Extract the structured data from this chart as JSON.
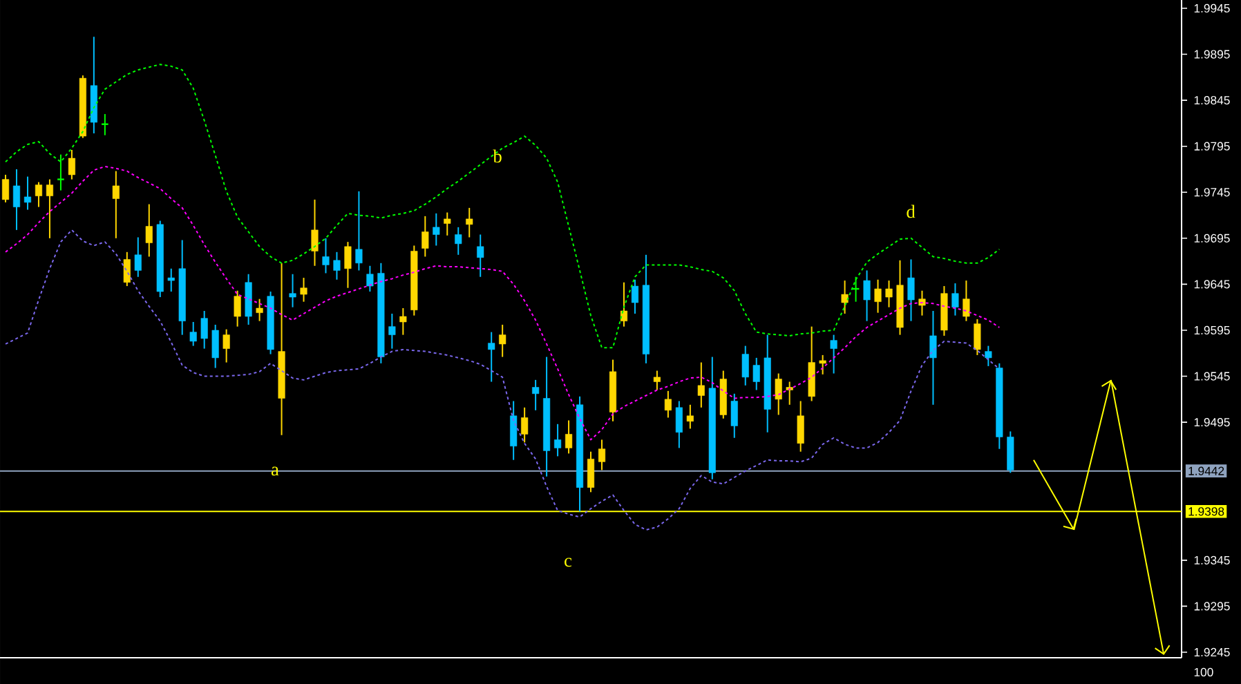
{
  "chart_data": {
    "type": "candlestick",
    "categories": [
      null,
      null,
      null,
      null,
      null,
      null,
      null,
      null,
      null,
      null,
      null,
      null,
      null,
      null,
      null,
      null,
      null,
      null,
      null,
      null,
      null,
      null,
      null,
      null,
      null,
      null,
      null,
      null,
      null,
      null,
      null,
      null,
      null,
      null,
      null,
      null,
      null,
      null,
      null,
      null,
      null,
      null,
      null,
      null,
      null,
      null,
      null,
      null,
      null,
      null,
      null,
      null,
      null,
      null,
      null,
      null,
      null,
      null,
      null,
      null,
      null,
      null,
      null,
      null,
      null,
      null,
      null,
      null,
      null,
      null,
      null,
      null,
      null,
      null,
      null,
      null,
      null,
      null,
      null,
      null,
      null,
      null,
      null,
      null,
      null,
      null,
      null,
      null,
      null,
      null,
      null,
      null,
      null,
      null,
      null,
      null,
      null,
      null,
      null,
      null,
      null,
      null,
      null,
      null,
      null,
      null,
      null
    ],
    "ohlc": [
      [
        1.9737,
        1.9764,
        1.9734,
        1.9759
      ],
      [
        1.9752,
        1.977,
        1.9704,
        1.9729
      ],
      [
        1.974,
        1.9762,
        1.9726,
        1.9734
      ],
      [
        1.9741,
        1.9756,
        1.9729,
        1.9753
      ],
      [
        1.9741,
        1.9759,
        1.9695,
        1.9753
      ],
      [
        1.9759,
        1.9786,
        1.9747,
        1.9759
      ],
      [
        1.9764,
        1.9791,
        1.9759,
        1.9782
      ],
      [
        1.9806,
        1.9872,
        1.9804,
        1.9869
      ],
      [
        1.9861,
        1.9914,
        1.9809,
        1.9821
      ],
      [
        1.9819,
        1.983,
        1.9807,
        1.9819
      ],
      [
        1.9738,
        1.9768,
        1.9695,
        1.9752
      ],
      [
        1.9647,
        1.968,
        1.9643,
        1.9672
      ],
      [
        1.9677,
        1.9696,
        1.9653,
        1.966
      ],
      [
        1.969,
        1.9732,
        1.9675,
        1.9708
      ],
      [
        1.971,
        1.9714,
        1.9631,
        1.9637
      ],
      [
        1.9652,
        1.9662,
        1.9637,
        1.9649
      ],
      [
        1.9662,
        1.9693,
        1.959,
        1.9605
      ],
      [
        1.9593,
        1.9604,
        1.9578,
        1.9583
      ],
      [
        1.9608,
        1.9616,
        1.9575,
        1.9586
      ],
      [
        1.9595,
        1.9601,
        1.9554,
        1.9565
      ],
      [
        1.9575,
        1.9596,
        1.956,
        1.959
      ],
      [
        1.961,
        1.9638,
        1.9599,
        1.9632
      ],
      [
        1.9647,
        1.9656,
        1.9601,
        1.961
      ],
      [
        1.9614,
        1.9629,
        1.9605,
        1.9619
      ],
      [
        1.9632,
        1.9637,
        1.9569,
        1.9574
      ],
      [
        1.9521,
        1.9668,
        1.9481,
        1.9572
      ],
      [
        1.9635,
        1.9656,
        1.962,
        1.9631
      ],
      [
        1.9634,
        1.9652,
        1.9626,
        1.9641
      ],
      [
        1.9681,
        1.9737,
        1.9665,
        1.9704
      ],
      [
        1.9675,
        1.9695,
        1.9657,
        1.9666
      ],
      [
        1.9671,
        1.968,
        1.965,
        1.966
      ],
      [
        1.9662,
        1.9691,
        1.9641,
        1.9686
      ],
      [
        1.9683,
        1.9746,
        1.966,
        1.9668
      ],
      [
        1.9656,
        1.9665,
        1.9637,
        1.9643
      ],
      [
        1.9657,
        1.9668,
        1.9559,
        1.9566
      ],
      [
        1.9599,
        1.9613,
        1.9575,
        1.959
      ],
      [
        1.9604,
        1.9619,
        1.959,
        1.961
      ],
      [
        1.9617,
        1.9687,
        1.9611,
        1.9681
      ],
      [
        1.9684,
        1.9719,
        1.9675,
        1.9702
      ],
      [
        1.9707,
        1.9722,
        1.9687,
        1.9699
      ],
      [
        1.9711,
        1.9723,
        1.9698,
        1.9716
      ],
      [
        1.9699,
        1.9707,
        1.9677,
        1.9689
      ],
      [
        1.971,
        1.9728,
        1.9696,
        1.9716
      ],
      [
        1.9686,
        1.9699,
        1.9653,
        1.9674
      ],
      [
        1.9581,
        1.9593,
        1.9539,
        1.9574
      ],
      [
        1.958,
        1.9601,
        1.9566,
        1.959
      ],
      [
        1.9502,
        1.9518,
        1.9454,
        1.9469
      ],
      [
        1.9482,
        1.9511,
        1.9473,
        1.95
      ],
      [
        1.9533,
        1.9541,
        1.9508,
        1.9526
      ],
      [
        1.9521,
        1.9566,
        1.9436,
        1.9464
      ],
      [
        1.9476,
        1.9493,
        1.9458,
        1.9467
      ],
      [
        1.9467,
        1.9497,
        1.9461,
        1.9482
      ],
      [
        1.9514,
        1.9523,
        1.9398,
        1.9424
      ],
      [
        1.9424,
        1.9463,
        1.9419,
        1.9455
      ],
      [
        1.9452,
        1.9476,
        1.9443,
        1.9466
      ],
      [
        1.9506,
        1.9563,
        1.9496,
        1.955
      ],
      [
        1.9605,
        1.9647,
        1.9599,
        1.9616
      ],
      [
        1.9643,
        1.965,
        1.9613,
        1.9625
      ],
      [
        1.9644,
        1.9677,
        1.9559,
        1.9569
      ],
      [
        1.9539,
        1.9551,
        1.953,
        1.9544
      ],
      [
        1.9508,
        1.9529,
        1.95,
        1.952
      ],
      [
        1.9511,
        1.9518,
        1.9467,
        1.9484
      ],
      [
        1.9496,
        1.9514,
        1.9488,
        1.9502
      ],
      [
        1.9524,
        1.956,
        1.9511,
        1.9535
      ],
      [
        1.9532,
        1.9566,
        1.9433,
        1.944
      ],
      [
        1.9503,
        1.9551,
        1.9499,
        1.9542
      ],
      [
        1.9518,
        1.9526,
        1.9478,
        1.9491
      ],
      [
        1.9569,
        1.9578,
        1.9535,
        1.9544
      ],
      [
        1.9557,
        1.9565,
        1.953,
        1.9539
      ],
      [
        1.9565,
        1.959,
        1.9484,
        1.9509
      ],
      [
        1.952,
        1.9548,
        1.9503,
        1.9542
      ],
      [
        1.953,
        1.9539,
        1.9514,
        1.9533
      ],
      [
        1.9472,
        1.9518,
        1.9463,
        1.9502
      ],
      [
        1.9523,
        1.9599,
        1.9518,
        1.956
      ],
      [
        1.9559,
        1.9568,
        1.9547,
        1.9562
      ],
      [
        1.9584,
        1.959,
        1.9548,
        1.9575
      ],
      [
        1.9625,
        1.9649,
        1.9613,
        1.9634
      ],
      [
        1.964,
        1.9653,
        1.9626,
        1.964
      ],
      [
        1.9649,
        1.966,
        1.9605,
        1.9628
      ],
      [
        1.9626,
        1.965,
        1.9614,
        1.964
      ],
      [
        1.9631,
        1.9649,
        1.962,
        1.964
      ],
      [
        1.9598,
        1.9671,
        1.959,
        1.9644
      ],
      [
        1.9652,
        1.9672,
        1.9605,
        1.9628
      ],
      [
        1.9622,
        1.9638,
        1.9611,
        1.9629
      ],
      [
        1.9589,
        1.9616,
        1.9514,
        1.9565
      ],
      [
        1.9595,
        1.9643,
        1.9589,
        1.9635
      ],
      [
        1.9635,
        1.9646,
        1.9611,
        1.962
      ],
      [
        1.961,
        1.9649,
        1.9605,
        1.9629
      ],
      [
        1.9574,
        1.9607,
        1.9568,
        1.9602
      ],
      [
        1.9572,
        1.9578,
        1.9556,
        1.9565
      ],
      [
        1.9554,
        1.9559,
        1.9466,
        1.9479
      ],
      [
        1.9479,
        1.9485,
        1.944,
        1.9443
      ],
      null,
      null,
      null,
      null,
      null,
      null,
      null,
      null,
      null,
      null,
      null,
      null,
      null,
      null,
      null
    ],
    "colors": [
      "#ffd700",
      "#00bfff",
      "#00bfff",
      "#ffd700",
      "#ffd700",
      "#00ff00",
      "#ffd700",
      "#ffd700",
      "#00bfff",
      "#00ff00",
      "#ffd700",
      "#ffd700",
      "#00bfff",
      "#ffd700",
      "#00bfff",
      "#00bfff",
      "#00bfff",
      "#00bfff",
      "#00bfff",
      "#00bfff",
      "#ffd700",
      "#ffd700",
      "#00bfff",
      "#ffd700",
      "#00bfff",
      "#ffd700",
      "#00bfff",
      "#ffd700",
      "#ffd700",
      "#00bfff",
      "#00bfff",
      "#ffd700",
      "#00bfff",
      "#00bfff",
      "#00bfff",
      "#00bfff",
      "#ffd700",
      "#ffd700",
      "#ffd700",
      "#00bfff",
      "#ffd700",
      "#00bfff",
      "#ffd700",
      "#00bfff",
      "#00bfff",
      "#ffd700",
      "#00bfff",
      "#ffd700",
      "#00bfff",
      "#00bfff",
      "#00bfff",
      "#ffd700",
      "#00bfff",
      "#ffd700",
      "#ffd700",
      "#ffd700",
      "#ffd700",
      "#00bfff",
      "#00bfff",
      "#ffd700",
      "#ffd700",
      "#00bfff",
      "#ffd700",
      "#ffd700",
      "#00bfff",
      "#ffd700",
      "#00bfff",
      "#00bfff",
      "#00bfff",
      "#00bfff",
      "#ffd700",
      "#ffd700",
      "#ffd700",
      "#ffd700",
      "#ffd700",
      "#00bfff",
      "#ffd700",
      "#00ff00",
      "#00bfff",
      "#ffd700",
      "#ffd700",
      "#ffd700",
      "#00bfff",
      "#ffd700",
      "#00bfff",
      "#ffd700",
      "#00bfff",
      "#ffd700",
      "#ffd700",
      "#00bfff",
      "#00bfff",
      "#00bfff",
      null,
      null,
      null,
      null,
      null,
      null,
      null,
      null,
      null,
      null,
      null,
      null,
      null,
      null,
      null
    ],
    "series": [
      {
        "type": "line",
        "color": "#00ff00",
        "line_style": "dashed",
        "values": [
          1.9778,
          1.9789,
          1.9797,
          1.98,
          1.9787,
          1.9778,
          1.9793,
          1.9811,
          1.9837,
          1.9857,
          1.9865,
          1.9873,
          1.9878,
          1.9881,
          1.9884,
          1.9882,
          1.9878,
          1.9858,
          1.9823,
          1.9785,
          1.9746,
          1.9718,
          1.9702,
          1.9686,
          1.9675,
          1.9668,
          1.9671,
          1.9678,
          1.9686,
          1.9695,
          1.9709,
          1.9722,
          1.972,
          1.9719,
          1.9717,
          1.972,
          1.9722,
          1.9725,
          1.9732,
          1.974,
          1.9749,
          1.9757,
          1.9766,
          1.9775,
          1.9784,
          1.9793,
          1.9799,
          1.9806,
          1.9796,
          1.9782,
          1.9756,
          1.9708,
          1.966,
          1.9611,
          1.9576,
          1.9576,
          1.962,
          1.9653,
          1.9666,
          1.9666,
          1.9666,
          1.9666,
          1.9664,
          1.9661,
          1.9659,
          1.9652,
          1.9638,
          1.9613,
          1.9593,
          1.9591,
          1.959,
          1.9589,
          1.9591,
          1.9592,
          1.9594,
          1.9595,
          1.9621,
          1.965,
          1.9669,
          1.9678,
          1.9686,
          1.9694,
          1.9695,
          1.9685,
          1.9675,
          1.9673,
          1.967,
          1.9668,
          1.9668,
          1.9674,
          1.9683,
          null,
          null,
          null,
          null,
          null,
          null,
          null,
          null,
          null,
          null,
          null,
          null,
          null,
          null,
          null,
          null
        ]
      },
      {
        "type": "line",
        "color": "#ff00ff",
        "line_style": "dashed",
        "values": [
          1.968,
          1.9689,
          1.9699,
          1.9712,
          1.9724,
          1.9734,
          1.9744,
          1.9757,
          1.9769,
          1.9773,
          1.9771,
          1.9768,
          1.9761,
          1.9755,
          1.9749,
          1.9738,
          1.9728,
          1.9709,
          1.9688,
          1.9669,
          1.9651,
          1.9634,
          1.9629,
          1.9624,
          1.9619,
          1.9612,
          1.9606,
          1.9613,
          1.962,
          1.9627,
          1.9632,
          1.9636,
          1.964,
          1.9644,
          1.9648,
          1.9651,
          1.9655,
          1.9658,
          1.9662,
          1.9665,
          1.9664,
          1.9664,
          1.9663,
          1.9662,
          1.9661,
          1.9659,
          1.9645,
          1.9627,
          1.9606,
          1.958,
          1.9553,
          1.9525,
          1.9499,
          1.9476,
          1.9487,
          1.9504,
          1.9512,
          1.9518,
          1.9524,
          1.953,
          1.9534,
          1.9539,
          1.9543,
          1.9544,
          1.9538,
          1.9529,
          1.9521,
          1.9522,
          1.9522,
          1.9523,
          1.9525,
          1.9531,
          1.9537,
          1.9544,
          1.9554,
          1.9565,
          1.9576,
          1.9588,
          1.9598,
          1.9605,
          1.9612,
          1.9619,
          1.9624,
          1.9625,
          1.9624,
          1.9621,
          1.9619,
          1.9616,
          1.9611,
          1.9606,
          1.9598,
          null,
          null,
          null,
          null,
          null,
          null,
          null,
          null,
          null,
          null,
          null,
          null,
          null,
          null,
          null,
          null
        ]
      },
      {
        "type": "line",
        "color": "#7b68ee",
        "line_style": "dashed",
        "values": [
          1.958,
          1.9586,
          1.9592,
          1.9628,
          1.9662,
          1.9691,
          1.9704,
          1.9692,
          1.9687,
          1.9691,
          1.9678,
          1.9659,
          1.9638,
          1.9621,
          1.9605,
          1.9582,
          1.9557,
          1.9549,
          1.9545,
          1.9545,
          1.9545,
          1.9546,
          1.9547,
          1.955,
          1.9559,
          1.9551,
          1.9543,
          1.9541,
          1.9545,
          1.9549,
          1.9551,
          1.9552,
          1.9553,
          1.9559,
          1.9566,
          1.9572,
          1.9574,
          1.9573,
          1.9572,
          1.957,
          1.9568,
          1.9565,
          1.9562,
          1.9558,
          1.9551,
          1.9544,
          1.9497,
          1.9472,
          1.9455,
          1.9425,
          1.9399,
          1.9395,
          1.9392,
          1.9401,
          1.9409,
          1.9416,
          1.9399,
          1.9384,
          1.9378,
          1.9381,
          1.939,
          1.9401,
          1.9423,
          1.9437,
          1.943,
          1.9428,
          1.9435,
          1.9442,
          1.9448,
          1.9454,
          1.9453,
          1.9453,
          1.9452,
          1.9456,
          1.9471,
          1.9478,
          1.9471,
          1.9467,
          1.9467,
          1.9473,
          1.9484,
          1.9497,
          1.9529,
          1.9557,
          1.9573,
          1.9583,
          1.9582,
          1.9581,
          1.9573,
          1.9563,
          1.9553,
          null,
          null,
          null,
          null,
          null,
          null,
          null,
          null,
          null,
          null,
          null,
          null,
          null,
          null,
          null,
          null
        ]
      }
    ],
    "ylim": [
      1.9239,
      1.9954
    ],
    "yticks": [
      1.9945,
      1.9895,
      1.9845,
      1.9795,
      1.9745,
      1.9695,
      1.9645,
      1.9595,
      1.9545,
      1.9495,
      1.9345,
      1.9295,
      1.9245
    ],
    "tick_labels": "y",
    "ref_lines": [
      {
        "axis": "y",
        "value": 1.9442,
        "label": "1.9442",
        "color": "#8fa3bf"
      },
      {
        "axis": "y",
        "value": 1.9398,
        "label": "1.9398",
        "color": "#ffff00"
      }
    ],
    "annotations": [
      "a",
      "b",
      "c",
      "d",
      "100"
    ]
  }
}
